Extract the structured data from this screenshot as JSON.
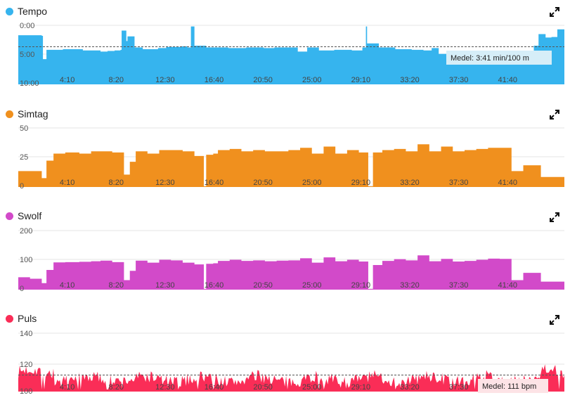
{
  "panels": [
    {
      "key": "tempo",
      "title": "Tempo",
      "color": "#36b4ee",
      "icon": "expand-icon"
    },
    {
      "key": "simtag",
      "title": "Simtag",
      "color": "#f0901e",
      "icon": "expand-icon"
    },
    {
      "key": "swolf",
      "title": "Swolf",
      "color": "#d24ac9",
      "icon": "expand-icon"
    },
    {
      "key": "puls",
      "title": "Puls",
      "color": "#fa2d57",
      "icon": "expand-icon"
    }
  ],
  "chart_data": [
    {
      "type": "area",
      "title": "Tempo",
      "inverted": true,
      "yticks": [
        "0:00",
        "5:00",
        "10:00"
      ],
      "ylim": [
        0,
        10
      ],
      "xticks": [
        "4:10",
        "8:20",
        "12:30",
        "16:40",
        "20:50",
        "25:00",
        "29:10",
        "33:20",
        "37:30",
        "41:40"
      ],
      "xlim": [
        0,
        46.5
      ],
      "average_label": "Medel: 3:41 min/100 m",
      "average_value": 3.68,
      "x": [
        0,
        2.0,
        2.1,
        2.4,
        3.8,
        5.5,
        7.0,
        7.6,
        8.2,
        8.7,
        8.8,
        9.2,
        9.3,
        9.9,
        10.6,
        11.9,
        12.6,
        13.8,
        14.4,
        14.7,
        15.0,
        15.1,
        16.0,
        17.9,
        19.4,
        20.9,
        21.8,
        23.8,
        24.6,
        25.6,
        26.9,
        28.4,
        29.3,
        29.6,
        29.7,
        30.7,
        32.1,
        33.5,
        34.5,
        35.2,
        35.8,
        37.6,
        39.5,
        41.1,
        42.0,
        43.9,
        44.3,
        44.9,
        45.4,
        45.9,
        46.5
      ],
      "y": [
        1.7,
        1.8,
        5.8,
        4.2,
        4.1,
        4.3,
        4.5,
        4.4,
        4.3,
        4.2,
        0.9,
        2.7,
        1.9,
        3.8,
        4.1,
        3.9,
        3.7,
        3.6,
        3.8,
        0.2,
        3.5,
        3.5,
        3.8,
        3.9,
        3.8,
        3.9,
        3.8,
        4.5,
        3.8,
        4.3,
        4.2,
        4.3,
        3.8,
        0.2,
        3.1,
        3.8,
        4.1,
        4.2,
        4.3,
        3.9,
        4.9,
        5.0,
        4.8,
        4.9,
        4.7,
        3.5,
        1.5,
        2.1,
        2.0,
        0.7,
        2.0
      ]
    },
    {
      "type": "area",
      "title": "Simtag",
      "yticks": [
        "50",
        "25",
        "0"
      ],
      "ylim": [
        0,
        50
      ],
      "xticks": [
        "4:10",
        "8:20",
        "12:30",
        "16:40",
        "20:50",
        "25:00",
        "29:10",
        "33:20",
        "37:30",
        "41:40"
      ],
      "xlim": [
        0,
        46.5
      ],
      "x": [
        0,
        1.0,
        2.0,
        2.4,
        3.0,
        4.0,
        5.2,
        6.2,
        7.0,
        8.0,
        9.0,
        9.5,
        10.0,
        11.0,
        12.0,
        13.0,
        14.0,
        15.0,
        15.8,
        16.0,
        16.6,
        17.0,
        18.0,
        19.0,
        20.0,
        21.0,
        22.0,
        23.0,
        24.0,
        25.0,
        26.0,
        27.0,
        28.0,
        29.0,
        29.8,
        30.2,
        31.0,
        32.0,
        33.0,
        34.0,
        35.0,
        36.0,
        37.0,
        38.0,
        39.0,
        40.0,
        41.0,
        42.0,
        43.0,
        43.5,
        44.5,
        45.5
      ],
      "y": [
        13,
        13,
        7,
        22,
        28,
        29,
        28,
        30,
        30,
        29,
        10,
        21,
        30,
        28,
        31,
        31,
        30,
        26,
        0,
        27,
        28,
        31,
        32,
        30,
        31,
        30,
        30,
        31,
        33,
        28,
        34,
        28,
        31,
        29,
        0,
        29,
        31,
        32,
        30,
        36,
        30,
        34,
        30,
        31,
        32,
        33,
        33,
        13,
        18,
        18,
        8,
        8
      ]
    },
    {
      "type": "area",
      "title": "Swolf",
      "yticks": [
        "200",
        "100",
        "0"
      ],
      "ylim": [
        0,
        200
      ],
      "xticks": [
        "4:10",
        "8:20",
        "12:30",
        "16:40",
        "20:50",
        "25:00",
        "29:10",
        "33:20",
        "37:30",
        "41:40"
      ],
      "xlim": [
        0,
        46.5
      ],
      "x": [
        0,
        1.0,
        2.0,
        2.4,
        3.0,
        4.0,
        5.2,
        6.2,
        7.0,
        8.0,
        9.0,
        9.5,
        10.0,
        11.0,
        12.0,
        13.0,
        14.0,
        15.0,
        15.8,
        16.0,
        16.6,
        17.0,
        18.0,
        19.0,
        20.0,
        21.0,
        22.0,
        23.0,
        24.0,
        25.0,
        26.0,
        27.0,
        28.0,
        29.0,
        29.8,
        30.2,
        31.0,
        32.0,
        33.0,
        34.0,
        35.0,
        36.0,
        37.0,
        38.0,
        39.0,
        40.0,
        41.0,
        42.0,
        43.0,
        43.5,
        44.5,
        45.5
      ],
      "y": [
        40,
        35,
        20,
        65,
        91,
        92,
        93,
        95,
        97,
        92,
        30,
        62,
        97,
        90,
        100,
        98,
        90,
        84,
        0,
        86,
        88,
        96,
        100,
        96,
        98,
        95,
        97,
        98,
        105,
        90,
        108,
        95,
        100,
        94,
        0,
        82,
        96,
        102,
        98,
        115,
        95,
        103,
        94,
        96,
        100,
        104,
        103,
        30,
        55,
        55,
        25,
        25
      ]
    },
    {
      "type": "area",
      "title": "Puls",
      "yticks": [
        "140",
        "120",
        "100"
      ],
      "ylim": [
        100,
        140
      ],
      "xticks": [
        "4:10",
        "8:20",
        "12:30",
        "16:40",
        "20:50",
        "25:00",
        "29:10",
        "33:20",
        "37:30",
        "41:40"
      ],
      "xlim": [
        0,
        46.5
      ],
      "average_label": "Medel: 111 bpm",
      "average_value": 111,
      "seed": 7
    }
  ]
}
